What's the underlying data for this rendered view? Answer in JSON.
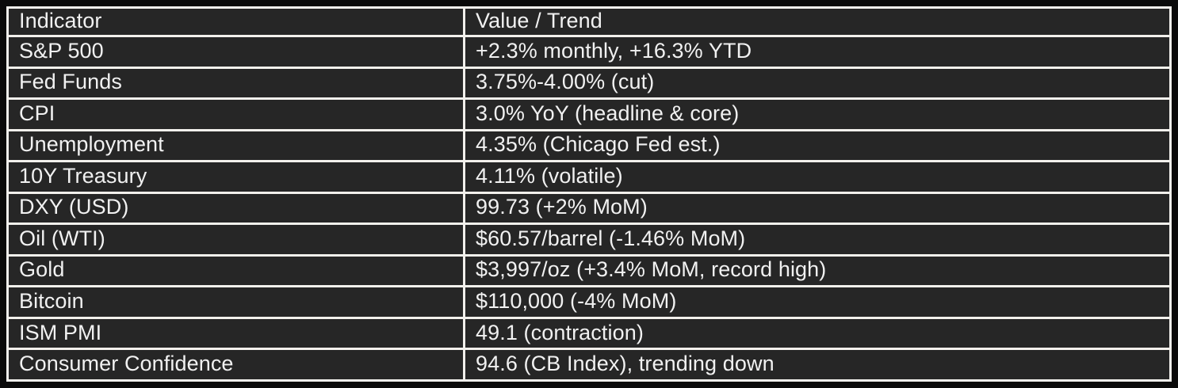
{
  "colors": {
    "page_background": "#0a0a0a",
    "cell_background": "#262626",
    "grid_border": "#f2f0ec",
    "text": "#f1f1f1"
  },
  "table": {
    "columns": [
      "Indicator",
      "Value / Trend"
    ],
    "rows": [
      {
        "indicator": "S&P 500",
        "value_trend": "+2.3% monthly, +16.3% YTD"
      },
      {
        "indicator": "Fed Funds",
        "value_trend": "3.75%-4.00% (cut)"
      },
      {
        "indicator": "CPI",
        "value_trend": "3.0% YoY (headline & core)"
      },
      {
        "indicator": "Unemployment",
        "value_trend": "4.35% (Chicago Fed est.)"
      },
      {
        "indicator": "10Y Treasury",
        "value_trend": "4.11% (volatile)"
      },
      {
        "indicator": "DXY (USD)",
        "value_trend": "99.73 (+2% MoM)"
      },
      {
        "indicator": "Oil (WTI)",
        "value_trend": "$60.57/barrel (-1.46% MoM)"
      },
      {
        "indicator": "Gold",
        "value_trend": "$3,997/oz (+3.4% MoM, record high)"
      },
      {
        "indicator": "Bitcoin",
        "value_trend": "$110,000 (-4% MoM)"
      },
      {
        "indicator": "ISM PMI",
        "value_trend": "49.1 (contraction)"
      },
      {
        "indicator": "Consumer Confidence",
        "value_trend": "94.6 (CB Index), trending down"
      }
    ]
  },
  "chart_data": {
    "type": "table",
    "columns": [
      "Indicator",
      "Value / Trend"
    ],
    "rows": [
      [
        "S&P 500",
        "+2.3% monthly, +16.3% YTD"
      ],
      [
        "Fed Funds",
        "3.75%-4.00% (cut)"
      ],
      [
        "CPI",
        "3.0% YoY (headline & core)"
      ],
      [
        "Unemployment",
        "4.35% (Chicago Fed est.)"
      ],
      [
        "10Y Treasury",
        "4.11% (volatile)"
      ],
      [
        "DXY (USD)",
        "99.73 (+2% MoM)"
      ],
      [
        "Oil (WTI)",
        "$60.57/barrel (-1.46% MoM)"
      ],
      [
        "Gold",
        "$3,997/oz (+3.4% MoM, record high)"
      ],
      [
        "Bitcoin",
        "$110,000 (-4% MoM)"
      ],
      [
        "ISM PMI",
        "49.1 (contraction)"
      ],
      [
        "Consumer Confidence",
        "94.6 (CB Index), trending down"
      ]
    ],
    "layout": {
      "grid": true,
      "theme": "dark",
      "header_row": true
    }
  }
}
